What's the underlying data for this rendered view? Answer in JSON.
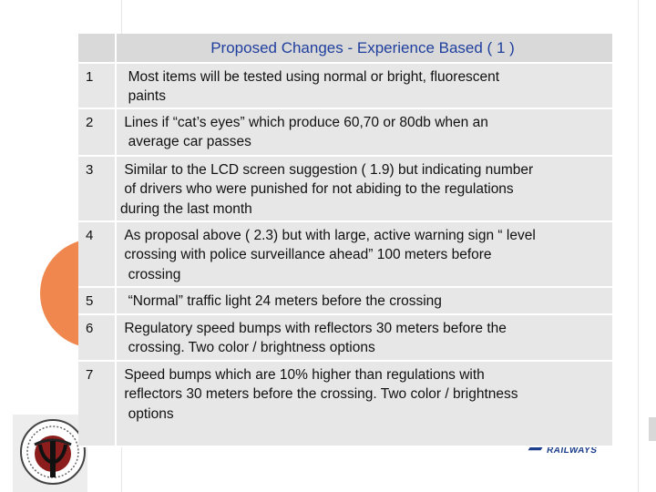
{
  "slide": {
    "title": "Proposed Changes - Experience Based ( 1 )",
    "logo_text": "ISRAEL RAILWAYS",
    "accent_colors": {
      "orange": "#f0874e",
      "title_blue": "#1f3f9e",
      "table_fill": "#e7e7e7"
    }
  },
  "table": {
    "rows": [
      {
        "num": "1",
        "text": "  Most items will be tested using normal or bright, fluorescent\n  paints"
      },
      {
        "num": "2",
        "text": " Lines if “cat’s eyes” which produce 60,70 or 80db when an\n  average car passes"
      },
      {
        "num": "3",
        "text": " Similar to the LCD screen suggestion ( 1.9) but indicating number\n of drivers who were punished for not abiding to the regulations\nduring the last month"
      },
      {
        "num": "4",
        "text": " As proposal above ( 2.3) but with large, active warning sign “ level\n crossing with police surveillance ahead” 100 meters before\n  crossing"
      },
      {
        "num": "5",
        "text": "  “Normal” traffic light 24 meters before the crossing"
      },
      {
        "num": "6",
        "text": " Regulatory speed bumps with reflectors 30 meters before the\n  crossing. Two color / brightness options"
      },
      {
        "num": "7",
        "text": " Speed bumps which are 10% higher than regulations with\n reflectors 30 meters before the crossing. Two color / brightness\n  options"
      }
    ]
  }
}
